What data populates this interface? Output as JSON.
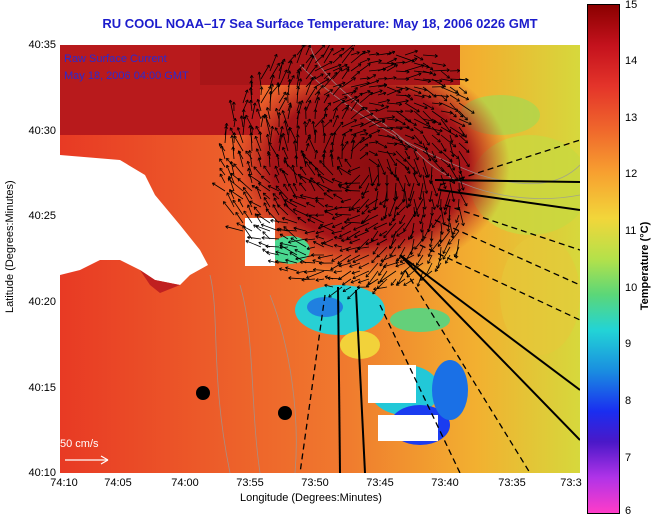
{
  "title": "RU COOL  NOAA–17  Sea Surface Temperature:  May 18, 2006 0226 GMT",
  "legend": {
    "line1": "Raw Surface Current",
    "line2": "May 18, 2006 04:00 GMT"
  },
  "scale_label": "50 cm/s",
  "axes": {
    "xlabel": "Longitude (Degrees:Minutes)",
    "ylabel": "Latitude (Degrees:Minutes)",
    "xticks": [
      "74:10",
      "74:05",
      "74:00",
      "73:55",
      "73:50",
      "73:45",
      "73:40",
      "73:35",
      "73:3"
    ],
    "yticks": [
      "40:35",
      "40:30",
      "40:25",
      "40:20",
      "40:15",
      "40:10"
    ]
  },
  "colorbar": {
    "label": "Temperature (°C)",
    "ticks": [
      "15",
      "14",
      "13",
      "12",
      "11",
      "10",
      "9",
      "8",
      "7",
      "6"
    ],
    "range": [
      6,
      15
    ]
  }
}
